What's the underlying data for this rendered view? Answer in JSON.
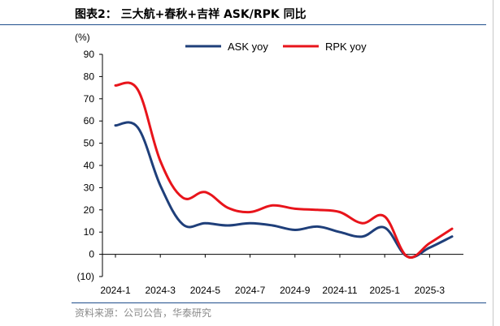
{
  "header": {
    "title": "图表2： 三大航+春秋+吉祥 ASK/RPK 同比"
  },
  "footer": {
    "source": "资料来源：公司公告，华泰研究"
  },
  "colors": {
    "ask": "#1f3f7a",
    "rpk": "#e8141b",
    "rule": "#1f4e8c"
  },
  "chart_data": {
    "type": "line",
    "title": "三大航+春秋+吉祥 ASK/RPK 同比",
    "ylabel": "(%)",
    "ylim": [
      -10,
      90
    ],
    "yticks": [
      -10,
      0,
      10,
      20,
      30,
      40,
      50,
      60,
      70,
      80,
      90
    ],
    "ytick_labels": [
      "(10)",
      "0",
      "10",
      "20",
      "30",
      "40",
      "50",
      "60",
      "70",
      "80",
      "90"
    ],
    "categories": [
      "2024-1",
      "2024-2",
      "2024-3",
      "2024-4",
      "2024-5",
      "2024-6",
      "2024-7",
      "2024-8",
      "2024-9",
      "2024-10",
      "2024-11",
      "2024-12",
      "2025-1",
      "2025-2",
      "2025-3",
      "2025-4"
    ],
    "xtick_labels": [
      "2024-1",
      "2024-3",
      "2024-5",
      "2024-7",
      "2024-9",
      "2024-11",
      "2025-1",
      "2025-3"
    ],
    "legend_position": "top",
    "series": [
      {
        "name": "ASK yoy",
        "values": [
          58,
          57,
          31,
          13.5,
          14,
          13,
          14,
          13,
          11,
          12.5,
          10,
          8,
          12,
          -1,
          3,
          8
        ]
      },
      {
        "name": "RPK yoy",
        "values": [
          76,
          74,
          42,
          25.5,
          28,
          21,
          19,
          22,
          20.5,
          20,
          19,
          14,
          17,
          -1,
          5,
          11.5
        ]
      }
    ]
  }
}
